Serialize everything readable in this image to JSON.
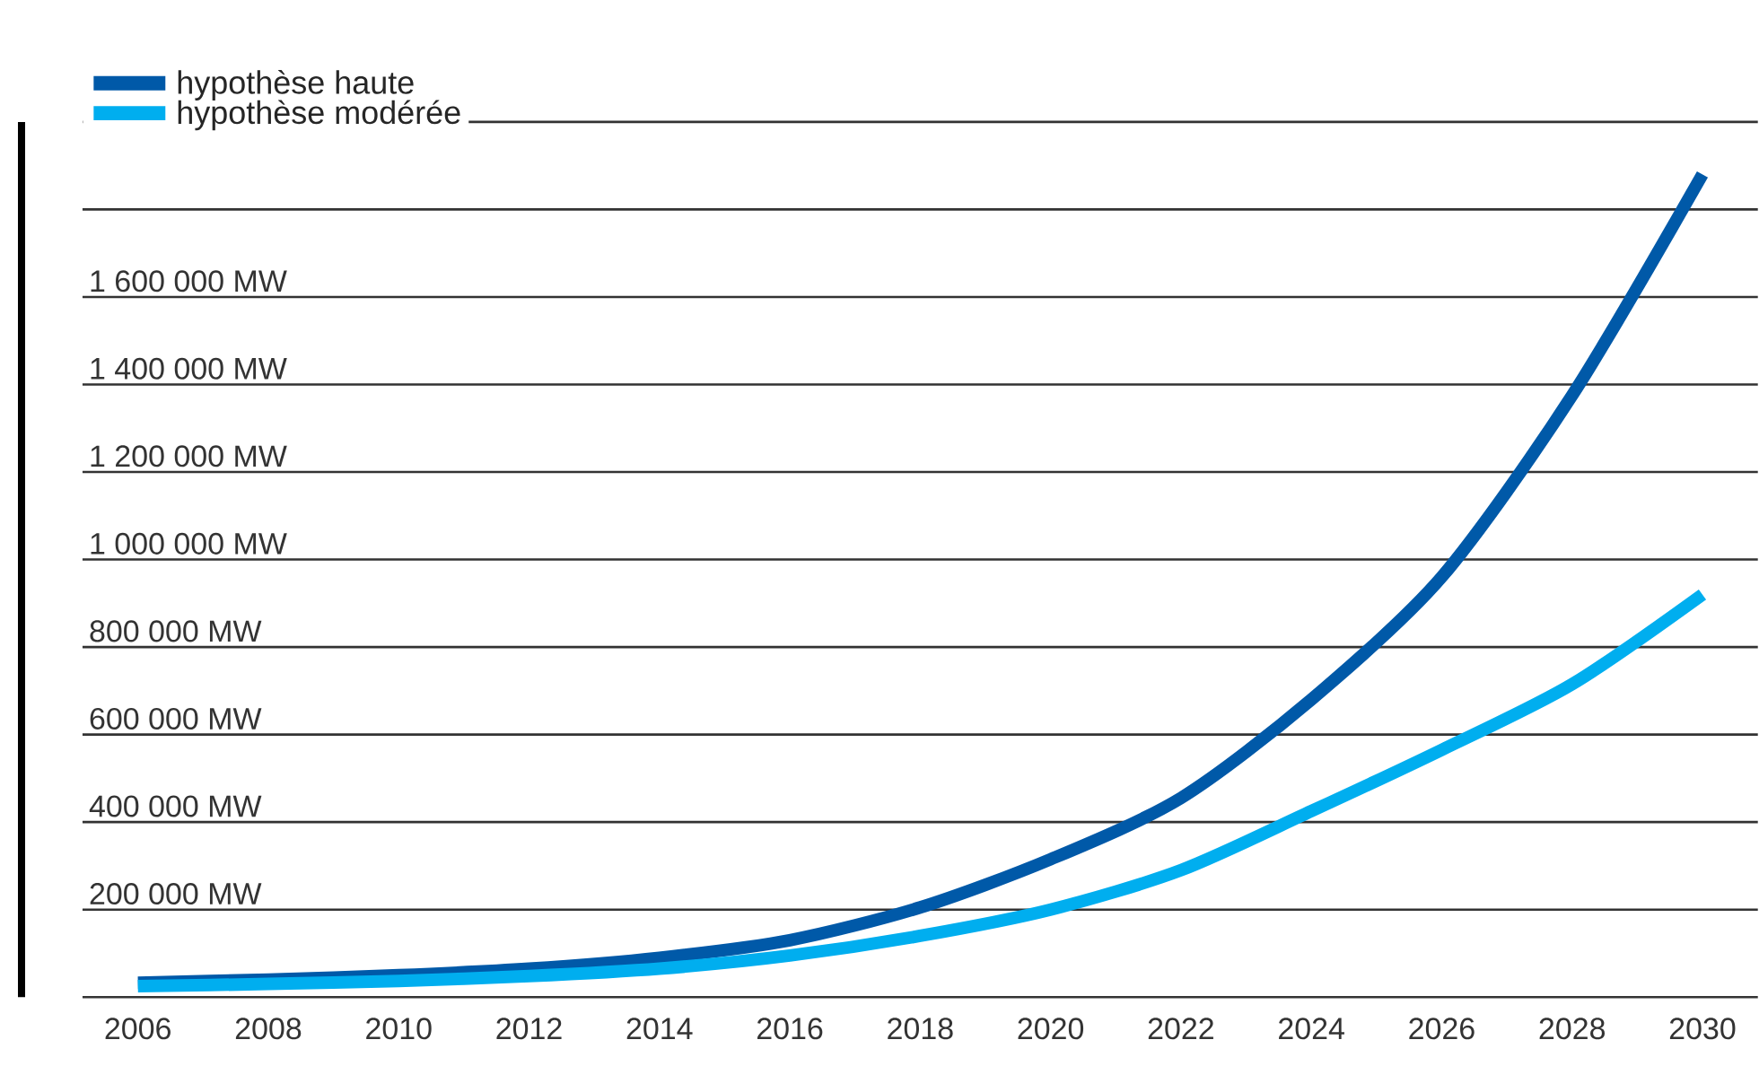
{
  "chart_data": {
    "type": "line",
    "x": [
      2006,
      2008,
      2010,
      2012,
      2014,
      2016,
      2018,
      2020,
      2022,
      2024,
      2026,
      2028,
      2030
    ],
    "series": [
      {
        "name": "hypothèse haute",
        "color": "#0059a8",
        "values": [
          33000,
          40000,
          50000,
          65000,
          90000,
          130000,
          205000,
          315000,
          455000,
          680000,
          960000,
          1375000,
          1880000
        ]
      },
      {
        "name": "hypothèse modérée",
        "color": "#00aeef",
        "values": [
          25000,
          30000,
          37000,
          48000,
          65000,
          95000,
          140000,
          200000,
          290000,
          425000,
          565000,
          715000,
          920000
        ]
      }
    ],
    "xlim": [
      2005.15,
      2030.85
    ],
    "xticks": [
      2006,
      2008,
      2010,
      2012,
      2014,
      2016,
      2018,
      2020,
      2022,
      2024,
      2026,
      2028,
      2030
    ],
    "ylim": [
      0,
      2000000
    ],
    "yticks": [
      {
        "value": 0,
        "label": null
      },
      {
        "value": 200000,
        "label": "200 000 MW"
      },
      {
        "value": 400000,
        "label": "400 000 MW"
      },
      {
        "value": 600000,
        "label": "600 000 MW"
      },
      {
        "value": 800000,
        "label": "800 000 MW"
      },
      {
        "value": 1000000,
        "label": "1 000 000 MW"
      },
      {
        "value": 1200000,
        "label": "1 200 000 MW"
      },
      {
        "value": 1400000,
        "label": "1 400 000 MW"
      },
      {
        "value": 1600000,
        "label": "1 600 000 MW"
      },
      {
        "value": 1800000,
        "label": null
      },
      {
        "value": 2000000,
        "label": null
      }
    ],
    "grid": "y",
    "legend": "top left",
    "line_style": "solid"
  }
}
